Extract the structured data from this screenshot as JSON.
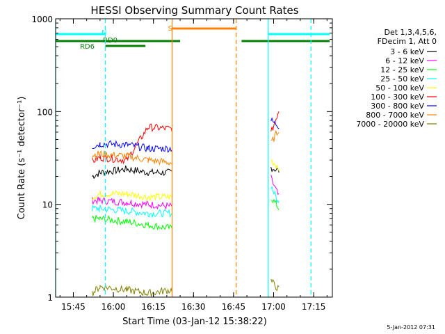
{
  "chart_data": {
    "type": "line",
    "title": "HESSI Observing Summary Count Rates",
    "xlabel": "Start Time (03-Jan-12 15:38:22)",
    "ylabel": "Count Rate (s⁻¹ detector⁻¹)",
    "y_scale": "log",
    "ylim": [
      1,
      1000
    ],
    "xlim": [
      "15:38:22",
      "17:22:00"
    ],
    "x_ticks": [
      "15:45",
      "16:00",
      "16:15",
      "16:30",
      "16:45",
      "17:00",
      "17:15"
    ],
    "y_ticks": [
      "1",
      "10",
      "100",
      "1000"
    ],
    "grid": false,
    "legend_position": "top-right",
    "legend_header": [
      "Det 1,3,4,5,6,",
      "FDecim 1, Att 0"
    ],
    "series": [
      {
        "name": "3 - 6 keV",
        "color": "#000000",
        "x": [
          "15:52",
          "15:55",
          "16:05",
          "16:13",
          "16:22",
          "16:59",
          "17:02"
        ],
        "y": [
          20,
          22,
          24,
          22,
          22,
          25,
          23
        ]
      },
      {
        "name": "6 - 12 keV",
        "color": "#ff00ff",
        "x": [
          "15:52",
          "15:55",
          "16:05",
          "16:13",
          "16:22",
          "16:59",
          "17:02"
        ],
        "y": [
          11,
          11,
          10.5,
          10,
          9.5,
          19,
          12
        ]
      },
      {
        "name": "12 - 25 keV",
        "color": "#00ff00",
        "x": [
          "15:52",
          "15:55",
          "16:05",
          "16:13",
          "16:22",
          "16:59",
          "17:02"
        ],
        "y": [
          7,
          7,
          6.5,
          6,
          5.5,
          12,
          9
        ]
      },
      {
        "name": "25 - 50 keV",
        "color": "#00ffff",
        "x": [
          "15:52",
          "15:55",
          "16:05",
          "16:13",
          "16:22",
          "16:59",
          "17:02"
        ],
        "y": [
          9,
          9,
          8.5,
          8,
          8,
          16,
          10
        ]
      },
      {
        "name": "50 - 100 keV",
        "color": "#ffff00",
        "x": [
          "15:52",
          "15:55",
          "16:05",
          "16:13",
          "16:22",
          "16:59",
          "17:02"
        ],
        "y": [
          12,
          13,
          13,
          12,
          12,
          30,
          25
        ]
      },
      {
        "name": "100 - 300 keV",
        "color": "#ff0000",
        "x": [
          "15:52",
          "15:55",
          "16:05",
          "16:13",
          "16:22",
          "16:59",
          "17:02"
        ],
        "y": [
          29,
          32,
          30,
          68,
          65,
          58,
          105
        ]
      },
      {
        "name": "300 - 800 keV",
        "color": "#0000ff",
        "x": [
          "15:52",
          "15:55",
          "16:05",
          "16:13",
          "16:22",
          "16:59",
          "17:02"
        ],
        "y": [
          42,
          45,
          44,
          40,
          40,
          80,
          70
        ]
      },
      {
        "name": "800 - 7000 keV",
        "color": "#ff8000",
        "x": [
          "15:52",
          "15:55",
          "16:05",
          "16:13",
          "16:22",
          "16:59",
          "17:02"
        ],
        "y": [
          34,
          35,
          33,
          30,
          28,
          45,
          65
        ]
      },
      {
        "name": "7000 - 20000 keV",
        "color": "#808000",
        "x": [
          "15:52",
          "15:55",
          "16:05",
          "16:13",
          "16:22",
          "16:59",
          "17:02"
        ],
        "y": [
          1.1,
          1.3,
          1.2,
          1.1,
          1.2,
          1.5,
          1.2
        ]
      }
    ],
    "flag_bars": [
      {
        "label": "N",
        "color": "#00ffff",
        "segments": [
          [
            "15:38:22",
            "15:57"
          ],
          [
            "16:58",
            "17:21"
          ]
        ]
      },
      {
        "label": "RD0",
        "color": "#008000",
        "segments": [
          [
            "15:38:22",
            "16:25"
          ],
          [
            "16:48",
            "17:21"
          ]
        ]
      },
      {
        "label": "RD6",
        "color": "#008000",
        "segments": [
          [
            "15:57",
            "16:12"
          ]
        ]
      },
      {
        "label": "S",
        "color": "#ff8000",
        "segments": [
          [
            "16:22",
            "16:46"
          ]
        ]
      }
    ],
    "vertical_lines": [
      {
        "x": "15:38:22",
        "color": "#00ffff",
        "style": "solid"
      },
      {
        "x": "15:57",
        "color": "#00ffff",
        "style": "dashed"
      },
      {
        "x": "16:22",
        "color": "#ff8000",
        "style": "solid"
      },
      {
        "x": "16:46",
        "color": "#ff8000",
        "style": "dashed"
      },
      {
        "x": "16:58",
        "color": "#00ffff",
        "style": "solid"
      },
      {
        "x": "17:14",
        "color": "#00ffff",
        "style": "dashed"
      }
    ],
    "footer": "5-Jan-2012 07:31"
  }
}
